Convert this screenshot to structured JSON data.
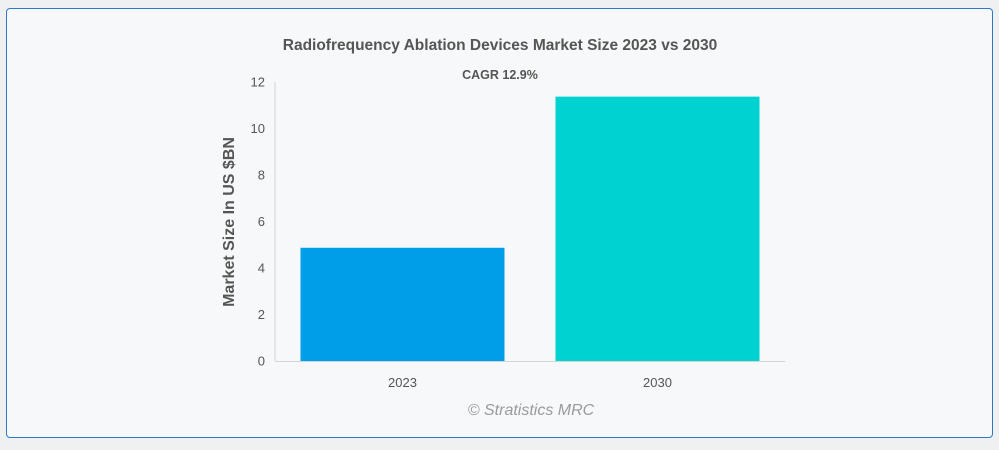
{
  "chart_data": {
    "type": "bar",
    "title": "Radiofrequency Ablation Devices Market Size 2023 vs 2030",
    "annotation": "CAGR 12.9%",
    "categories": [
      "2023",
      "2030"
    ],
    "values": [
      4.87,
      11.37
    ],
    "bar_colors": [
      "#009ee8",
      "#00d2d2"
    ],
    "xlabel": "",
    "ylabel": "Market Size In US $BN",
    "ylim": [
      0,
      12
    ],
    "yticks": [
      "0",
      "2",
      "4",
      "6",
      "8",
      "10",
      "12"
    ],
    "grid": false,
    "legend": "none"
  },
  "watermark": "© Stratistics MRC"
}
